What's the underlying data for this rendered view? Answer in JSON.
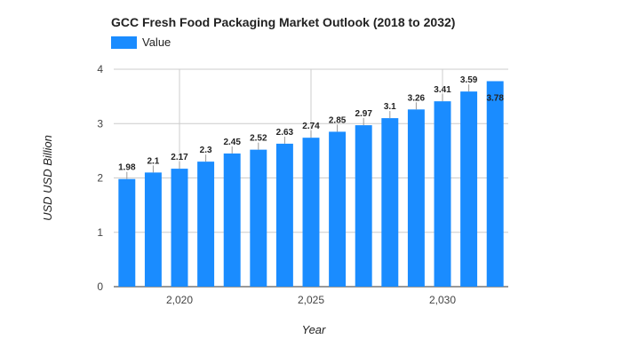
{
  "chart_data": {
    "type": "bar",
    "title": "GCC Fresh Food Packaging Market Outlook (2018 to 2032)",
    "xlabel": "Year",
    "ylabel": "USD USD Billion",
    "ylim": [
      0,
      4
    ],
    "xlim": [
      2017.5,
      2032.5
    ],
    "yticks": [
      0,
      1,
      2,
      3,
      4
    ],
    "xticks": [
      2020,
      2025,
      2030
    ],
    "xtick_labels": [
      "2,020",
      "2,025",
      "2,030"
    ],
    "legend": {
      "label": "Value",
      "position": "top-left"
    },
    "grid": true,
    "x": [
      2018,
      2019,
      2020,
      2021,
      2022,
      2023,
      2024,
      2025,
      2026,
      2027,
      2028,
      2029,
      2030,
      2031,
      2032
    ],
    "values": [
      1.98,
      2.1,
      2.17,
      2.3,
      2.45,
      2.52,
      2.63,
      2.74,
      2.85,
      2.97,
      3.1,
      3.26,
      3.41,
      3.59,
      3.78
    ],
    "data_labels": [
      "1.98",
      "2.1",
      "2.17",
      "2.3",
      "2.45",
      "2.52",
      "2.63",
      "2.74",
      "2.85",
      "2.97",
      "3.1",
      "3.26",
      "3.41",
      "3.59",
      "3.78"
    ],
    "color": "#1a8cff"
  }
}
